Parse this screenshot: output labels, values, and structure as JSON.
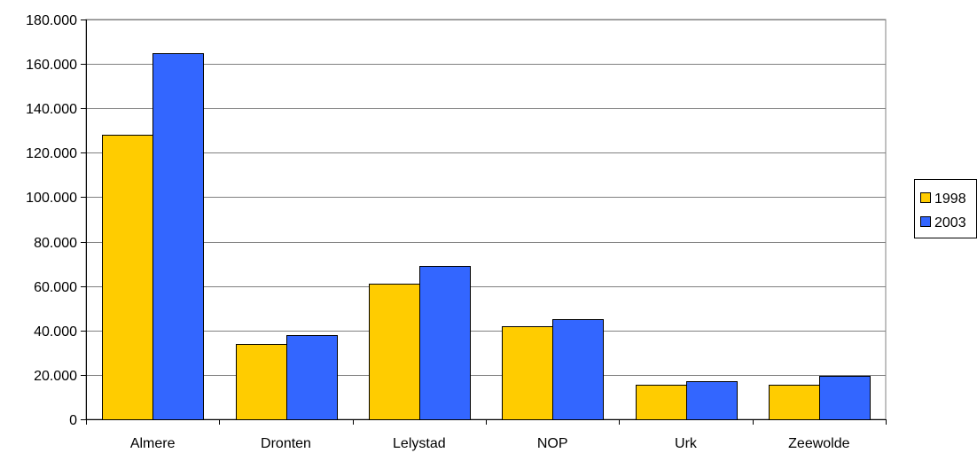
{
  "chart_data": {
    "type": "bar",
    "title": "",
    "xlabel": "",
    "ylabel": "",
    "categories": [
      "Almere",
      "Dronten",
      "Lelystad",
      "NOP",
      "Urk",
      "Zeewolde"
    ],
    "series": [
      {
        "name": "1998",
        "color": "#FFCC00",
        "values": [
          128000,
          34000,
          61000,
          42000,
          15500,
          15500
        ]
      },
      {
        "name": "2003",
        "color": "#3366FF",
        "values": [
          165000,
          38000,
          69000,
          45000,
          17000,
          19500
        ]
      }
    ],
    "ylim": [
      0,
      180000
    ],
    "yticks": [
      0,
      20000,
      40000,
      60000,
      80000,
      100000,
      120000,
      140000,
      160000,
      180000
    ],
    "ytick_labels": [
      "0",
      "20.000",
      "40.000",
      "60.000",
      "80.000",
      "100.000",
      "120.000",
      "140.000",
      "160.000",
      "180.000"
    ],
    "grid": true,
    "legend_position": "right"
  }
}
